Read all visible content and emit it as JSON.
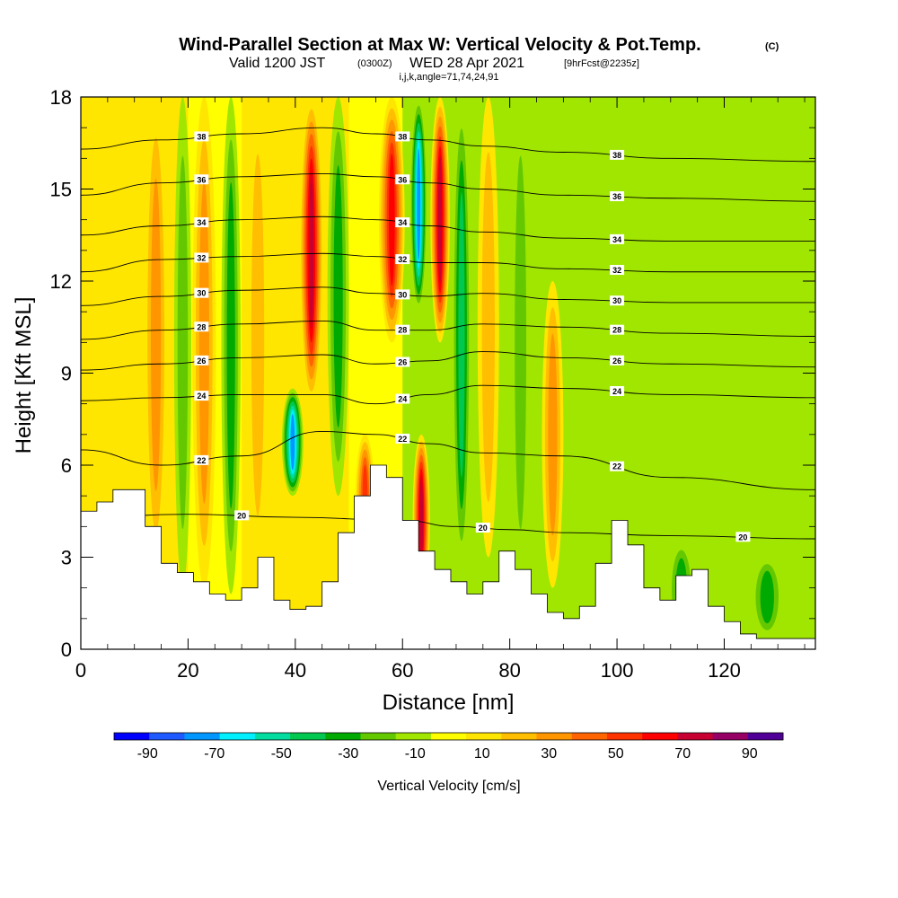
{
  "header": {
    "title": "Wind-Parallel Section at Max W: Vertical Velocity & Pot.Temp.",
    "copyright": "(C)",
    "valid_prefix": "Valid 1200 JST",
    "valid_utc": "(0300Z)",
    "valid_date": "WED 28 Apr 2021",
    "forecast": "[9hrFcst@2235z]",
    "indices": "i,j,k,angle=71,74,24,91"
  },
  "chart_data": {
    "type": "heatmap",
    "xlabel": "Distance [nm]",
    "ylabel": "Height [Kft MSL]",
    "xlim": [
      0,
      137
    ],
    "ylim": [
      0,
      18
    ],
    "x_ticks": [
      "0",
      "20",
      "40",
      "60",
      "80",
      "100",
      "120"
    ],
    "x_tick_values": [
      0,
      20,
      40,
      60,
      80,
      100,
      120
    ],
    "y_ticks": [
      "0",
      "3",
      "6",
      "9",
      "12",
      "15",
      "18"
    ],
    "y_tick_values": [
      0,
      3,
      6,
      9,
      12,
      15,
      18
    ],
    "colorbar": {
      "label": "Vertical Velocity [cm/s]",
      "tick_labels": [
        "-90",
        "-70",
        "-50",
        "-30",
        "-10",
        "10",
        "30",
        "50",
        "70",
        "90"
      ],
      "tick_values": [
        -90,
        -70,
        -50,
        -30,
        -10,
        10,
        30,
        50,
        70,
        90
      ],
      "bounds": [
        -100,
        100
      ],
      "colors": [
        "#0000ff",
        "#1e5aff",
        "#0096ff",
        "#00f0ff",
        "#00dca0",
        "#00c850",
        "#00aa00",
        "#64c800",
        "#a0e600",
        "#ffff00",
        "#ffe600",
        "#ffbe00",
        "#ff9600",
        "#ff6400",
        "#ff3200",
        "#ff0000",
        "#c80032",
        "#960064",
        "#500096"
      ]
    },
    "theta_contours": [
      {
        "label": "20",
        "level": 20,
        "height": [
          4.3,
          4.4,
          4.3,
          4.2,
          4.0,
          3.9,
          3.8,
          3.7,
          3.6
        ],
        "x": [
          0,
          20,
          40,
          60,
          70,
          80,
          90,
          110,
          137
        ]
      },
      {
        "label": "22",
        "level": 22,
        "height": [
          6.5,
          6.0,
          6.3,
          7.1,
          7.0,
          6.7,
          6.4,
          6.3,
          5.6,
          5.2
        ]
      },
      {
        "label": "24",
        "level": 24,
        "height": [
          8.1,
          8.2,
          8.3,
          8.3,
          8.0,
          8.3,
          8.6,
          8.5,
          8.3,
          8.2
        ]
      },
      {
        "label": "26",
        "level": 26,
        "height": [
          9.1,
          9.3,
          9.5,
          9.6,
          9.3,
          9.4,
          9.7,
          9.5,
          9.3,
          9.2
        ]
      },
      {
        "label": "28",
        "level": 28,
        "height": [
          10.1,
          10.4,
          10.6,
          10.7,
          10.4,
          10.4,
          10.6,
          10.5,
          10.3,
          10.2
        ]
      },
      {
        "label": "30",
        "level": 30,
        "height": [
          11.2,
          11.5,
          11.7,
          11.8,
          11.6,
          11.5,
          11.6,
          11.4,
          11.3,
          11.3
        ]
      },
      {
        "label": "32",
        "level": 32,
        "height": [
          12.3,
          12.7,
          12.8,
          12.9,
          12.8,
          12.6,
          12.6,
          12.4,
          12.3,
          12.3
        ]
      },
      {
        "label": "34",
        "level": 34,
        "height": [
          13.5,
          13.8,
          14.0,
          14.1,
          14.0,
          13.8,
          13.6,
          13.4,
          13.3,
          13.3
        ]
      },
      {
        "label": "36",
        "level": 36,
        "height": [
          14.8,
          15.2,
          15.4,
          15.5,
          15.4,
          15.2,
          15.0,
          14.8,
          14.7,
          14.6
        ]
      },
      {
        "label": "38",
        "level": 38,
        "height": [
          16.3,
          16.6,
          16.8,
          17.0,
          16.8,
          16.6,
          16.4,
          16.2,
          16.0,
          15.9
        ]
      }
    ],
    "contour_x": [
      0,
      15,
      30,
      45,
      55,
      65,
      75,
      90,
      110,
      137
    ],
    "terrain_height": [
      4.5,
      4.8,
      5.2,
      5.2,
      4.0,
      2.8,
      2.5,
      2.2,
      1.8,
      1.6,
      2.0,
      3.0,
      1.6,
      1.3,
      1.4,
      2.2,
      3.8,
      5.0,
      6.0,
      5.6,
      4.2,
      3.2,
      2.6,
      2.2,
      1.8,
      2.2,
      3.2,
      2.6,
      1.8,
      1.2,
      1.0,
      1.4,
      2.8,
      4.2,
      3.4,
      2.0,
      1.6,
      2.4,
      2.6,
      1.4,
      0.9,
      0.5,
      0.35,
      0.35,
      0.35,
      0.35,
      0.35,
      0.35
    ],
    "terrain_x_step": 3,
    "updrafts": [
      {
        "x": 14,
        "w": 35,
        "width": 2.2,
        "z0": 2.5,
        "z1": 18
      },
      {
        "x": 19,
        "w": -25,
        "width": 1.6,
        "z0": 2.0,
        "z1": 18
      },
      {
        "x": 23,
        "w": 30,
        "width": 2.2,
        "z0": 2.0,
        "z1": 18
      },
      {
        "x": 28,
        "w": -30,
        "width": 1.8,
        "z0": 1.8,
        "z1": 18
      },
      {
        "x": 33,
        "w": 25,
        "width": 2.0,
        "z0": 2.5,
        "z1": 18
      },
      {
        "x": 39.5,
        "w": -75,
        "width": 2.0,
        "z0": 5.0,
        "z1": 8.5
      },
      {
        "x": 43,
        "w": 70,
        "width": 2.2,
        "z0": 8.0,
        "z1": 18
      },
      {
        "x": 48,
        "w": -30,
        "width": 2.0,
        "z0": 5.0,
        "z1": 18
      },
      {
        "x": 53,
        "w": 55,
        "width": 1.8,
        "z0": 2.5,
        "z1": 7.0
      },
      {
        "x": 58,
        "w": 65,
        "width": 2.4,
        "z0": 10.0,
        "z1": 18
      },
      {
        "x": 63,
        "w": -70,
        "width": 1.6,
        "z0": 11.0,
        "z1": 18
      },
      {
        "x": 63.5,
        "w": 70,
        "width": 1.6,
        "z0": 1.5,
        "z1": 7.0
      },
      {
        "x": 67,
        "w": 75,
        "width": 1.8,
        "z0": 10.0,
        "z1": 18
      },
      {
        "x": 71,
        "w": -40,
        "width": 1.8,
        "z0": 2.5,
        "z1": 18
      },
      {
        "x": 76,
        "w": 25,
        "width": 2.0,
        "z0": 3.0,
        "z1": 18
      },
      {
        "x": 82,
        "w": -25,
        "width": 1.8,
        "z0": 2.0,
        "z1": 18
      },
      {
        "x": 88,
        "w": 35,
        "width": 2.0,
        "z0": 2.0,
        "z1": 12.0
      },
      {
        "x": 112,
        "w": -35,
        "width": 2.5,
        "z0": 0.4,
        "z1": 3.5
      },
      {
        "x": 128,
        "w": -30,
        "width": 3.0,
        "z0": 0.4,
        "z1": 3.0
      }
    ]
  }
}
